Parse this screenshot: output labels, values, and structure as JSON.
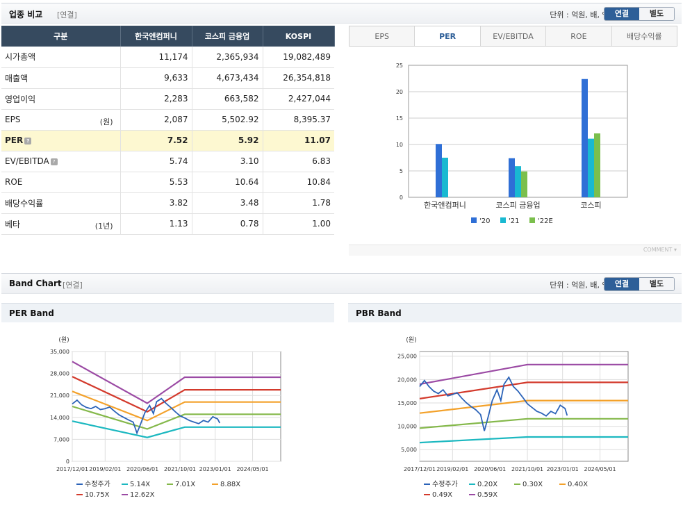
{
  "section1": {
    "title": "업종 비교",
    "sub": "[연결]",
    "unit": "단위 : 억원, 배, %",
    "toggle_on": "연결",
    "toggle_off": "별도"
  },
  "table": {
    "headers": [
      "구분",
      "한국앤컴퍼니",
      "코스피 금융업",
      "KOSPI"
    ],
    "rows": [
      {
        "label": "시가총액",
        "sub": "",
        "values": [
          "11,174",
          "2,365,934",
          "19,082,489"
        ]
      },
      {
        "label": "매출액",
        "sub": "",
        "values": [
          "9,633",
          "4,673,434",
          "26,354,818"
        ]
      },
      {
        "label": "영업이익",
        "sub": "",
        "values": [
          "2,283",
          "663,582",
          "2,427,044"
        ]
      },
      {
        "label": "EPS",
        "sub": "(원)",
        "values": [
          "2,087",
          "5,502.92",
          "8,395.37"
        ]
      },
      {
        "label": "PER",
        "sub": "",
        "values": [
          "7.52",
          "5.92",
          "11.07"
        ],
        "highlight": true,
        "help": true
      },
      {
        "label": "EV/EBITDA",
        "sub": "",
        "values": [
          "5.74",
          "3.10",
          "6.83"
        ],
        "help": true
      },
      {
        "label": "ROE",
        "sub": "",
        "values": [
          "5.53",
          "10.64",
          "10.84"
        ]
      },
      {
        "label": "배당수익률",
        "sub": "",
        "values": [
          "3.82",
          "3.48",
          "1.78"
        ]
      },
      {
        "label": "베타",
        "sub": "(1년)",
        "values": [
          "1.13",
          "0.78",
          "1.00"
        ]
      }
    ]
  },
  "tabs": [
    {
      "label": "EPS"
    },
    {
      "label": "PER",
      "active": true
    },
    {
      "label": "EV/EBITDA"
    },
    {
      "label": "ROE"
    },
    {
      "label": "배당수익률"
    }
  ],
  "comment": "COMMENT",
  "section2": {
    "title": "Band Chart",
    "sub": "[연결]",
    "unit": "단위 : 억원, 배, %",
    "toggle_on": "연결",
    "toggle_off": "별도"
  },
  "colors": {
    "c20": "#2f6fd6",
    "c21": "#19b9d1",
    "c22": "#7bbf4d",
    "price": "#2b63b8",
    "b1": "#1cb8c0",
    "b2": "#84b84a",
    "b3": "#f3a12a",
    "b4": "#d33a2c",
    "b5": "#9b4aa4"
  },
  "chart_data": [
    {
      "type": "bar",
      "categories": [
        "한국앤컴퍼니",
        "코스피 금융업",
        "코스피"
      ],
      "series": [
        {
          "name": "'20",
          "values": [
            10.1,
            7.4,
            22.4
          ]
        },
        {
          "name": "'21",
          "values": [
            7.5,
            5.9,
            11.1
          ]
        },
        {
          "name": "'22E",
          "values": [
            null,
            4.9,
            12.1
          ]
        }
      ],
      "ylim": [
        0,
        25
      ],
      "yticks": [
        0,
        5,
        10,
        15,
        20,
        25
      ],
      "grid": true,
      "legend": "bottom"
    },
    {
      "type": "line",
      "title": "PER Band",
      "ylabel": "(원)",
      "ylim": [
        0,
        35000
      ],
      "yticks": [
        0,
        7000,
        14000,
        21000,
        28000,
        35000
      ],
      "ytick_labels": [
        "0",
        "7,000",
        "14,000",
        "21,000",
        "28,000",
        "35,000"
      ],
      "xticks": [
        "2017/12/01",
        "2019/02/01",
        "2020/06/01",
        "2021/10/01",
        "2023/01/01",
        "2024/05/01"
      ],
      "xlim": [
        "2017-12-01",
        "2025-05-01"
      ],
      "series": [
        {
          "name": "수정주가",
          "points": [
            [
              "2017-12-01",
              18300
            ],
            [
              "2018-02-01",
              19500
            ],
            [
              "2018-04-01",
              18000
            ],
            [
              "2018-06-01",
              17200
            ],
            [
              "2018-08-01",
              16800
            ],
            [
              "2018-10-01",
              17500
            ],
            [
              "2018-12-01",
              16500
            ],
            [
              "2019-02-01",
              16800
            ],
            [
              "2019-04-01",
              17300
            ],
            [
              "2019-06-01",
              16000
            ],
            [
              "2019-08-01",
              14800
            ],
            [
              "2019-10-01",
              14000
            ],
            [
              "2019-12-01",
              13200
            ],
            [
              "2020-02-01",
              12500
            ],
            [
              "2020-03-20",
              9000
            ],
            [
              "2020-05-01",
              11500
            ],
            [
              "2020-07-01",
              15500
            ],
            [
              "2020-09-01",
              17800
            ],
            [
              "2020-10-20",
              15200
            ],
            [
              "2020-12-01",
              19000
            ],
            [
              "2021-02-01",
              20000
            ],
            [
              "2021-04-01",
              18500
            ],
            [
              "2021-06-01",
              17200
            ],
            [
              "2021-08-01",
              15800
            ],
            [
              "2021-10-01",
              14500
            ],
            [
              "2021-12-01",
              13800
            ],
            [
              "2022-02-01",
              13000
            ],
            [
              "2022-04-01",
              12500
            ],
            [
              "2022-06-01",
              12000
            ],
            [
              "2022-08-01",
              13000
            ],
            [
              "2022-10-01",
              12500
            ],
            [
              "2022-12-01",
              14200
            ],
            [
              "2023-02-01",
              13500
            ],
            [
              "2023-03-01",
              12200
            ]
          ]
        },
        {
          "name": "5.14X",
          "points": [
            [
              "2017-12-01",
              12800
            ],
            [
              "2020-08-01",
              7600
            ],
            [
              "2021-12-01",
              10900
            ],
            [
              "2025-05-01",
              10900
            ]
          ]
        },
        {
          "name": "7.01X",
          "points": [
            [
              "2017-12-01",
              17500
            ],
            [
              "2020-08-01",
              10300
            ],
            [
              "2021-12-01",
              15000
            ],
            [
              "2025-05-01",
              15000
            ]
          ]
        },
        {
          "name": "8.88X",
          "points": [
            [
              "2017-12-01",
              22300
            ],
            [
              "2020-08-01",
              13000
            ],
            [
              "2021-12-01",
              18900
            ],
            [
              "2025-05-01",
              18900
            ]
          ]
        },
        {
          "name": "10.75X",
          "points": [
            [
              "2017-12-01",
              27000
            ],
            [
              "2020-08-01",
              15800
            ],
            [
              "2021-12-01",
              22800
            ],
            [
              "2025-05-01",
              22800
            ]
          ]
        },
        {
          "name": "12.62X",
          "points": [
            [
              "2017-12-01",
              31800
            ],
            [
              "2020-08-01",
              18500
            ],
            [
              "2021-12-01",
              26800
            ],
            [
              "2025-05-01",
              26800
            ]
          ]
        }
      ],
      "legend": "bottom"
    },
    {
      "type": "line",
      "title": "PBR Band",
      "ylabel": "(원)",
      "ylim": [
        2500,
        26000
      ],
      "yticks": [
        5000,
        10000,
        15000,
        20000,
        25000
      ],
      "ytick_labels": [
        "5,000",
        "10,000",
        "15,000",
        "20,000",
        "25,000"
      ],
      "xticks": [
        "2017/12/01",
        "2019/02/01",
        "2020/06/01",
        "2021/10/01",
        "2023/01/01",
        "2024/05/01"
      ],
      "xlim": [
        "2017-12-01",
        "2025-05-01"
      ],
      "series": [
        {
          "name": "수정주가",
          "points": [
            [
              "2017-12-01",
              18500
            ],
            [
              "2018-02-01",
              19800
            ],
            [
              "2018-04-01",
              18500
            ],
            [
              "2018-06-01",
              17500
            ],
            [
              "2018-08-01",
              17000
            ],
            [
              "2018-10-01",
              17800
            ],
            [
              "2018-12-01",
              16500
            ],
            [
              "2019-02-01",
              16800
            ],
            [
              "2019-04-01",
              17200
            ],
            [
              "2019-06-01",
              16000
            ],
            [
              "2019-08-01",
              15000
            ],
            [
              "2019-10-01",
              14200
            ],
            [
              "2019-12-01",
              13500
            ],
            [
              "2020-02-01",
              12500
            ],
            [
              "2020-03-20",
              9000
            ],
            [
              "2020-05-01",
              11500
            ],
            [
              "2020-07-01",
              15500
            ],
            [
              "2020-09-01",
              17800
            ],
            [
              "2020-10-20",
              15500
            ],
            [
              "2020-12-01",
              19000
            ],
            [
              "2021-02-01",
              20500
            ],
            [
              "2021-04-01",
              18500
            ],
            [
              "2021-06-01",
              17500
            ],
            [
              "2021-08-01",
              16200
            ],
            [
              "2021-10-01",
              14800
            ],
            [
              "2021-12-01",
              14000
            ],
            [
              "2022-02-01",
              13200
            ],
            [
              "2022-04-01",
              12800
            ],
            [
              "2022-06-01",
              12200
            ],
            [
              "2022-08-01",
              13200
            ],
            [
              "2022-10-01",
              12700
            ],
            [
              "2022-12-01",
              14500
            ],
            [
              "2023-02-01",
              13800
            ],
            [
              "2023-03-01",
              12300
            ]
          ]
        },
        {
          "name": "0.20X",
          "points": [
            [
              "2017-12-01",
              6500
            ],
            [
              "2021-10-01",
              7700
            ],
            [
              "2025-05-01",
              7700
            ]
          ]
        },
        {
          "name": "0.30X",
          "points": [
            [
              "2017-12-01",
              9600
            ],
            [
              "2021-10-01",
              11600
            ],
            [
              "2025-05-01",
              11600
            ]
          ]
        },
        {
          "name": "0.40X",
          "points": [
            [
              "2017-12-01",
              12800
            ],
            [
              "2021-10-01",
              15500
            ],
            [
              "2025-05-01",
              15500
            ]
          ]
        },
        {
          "name": "0.49X",
          "points": [
            [
              "2017-12-01",
              15900
            ],
            [
              "2021-10-01",
              19400
            ],
            [
              "2025-05-01",
              19400
            ]
          ]
        },
        {
          "name": "0.59X",
          "points": [
            [
              "2017-12-01",
              19000
            ],
            [
              "2021-10-01",
              23200
            ],
            [
              "2025-05-01",
              23200
            ]
          ]
        }
      ],
      "legend": "bottom"
    }
  ]
}
